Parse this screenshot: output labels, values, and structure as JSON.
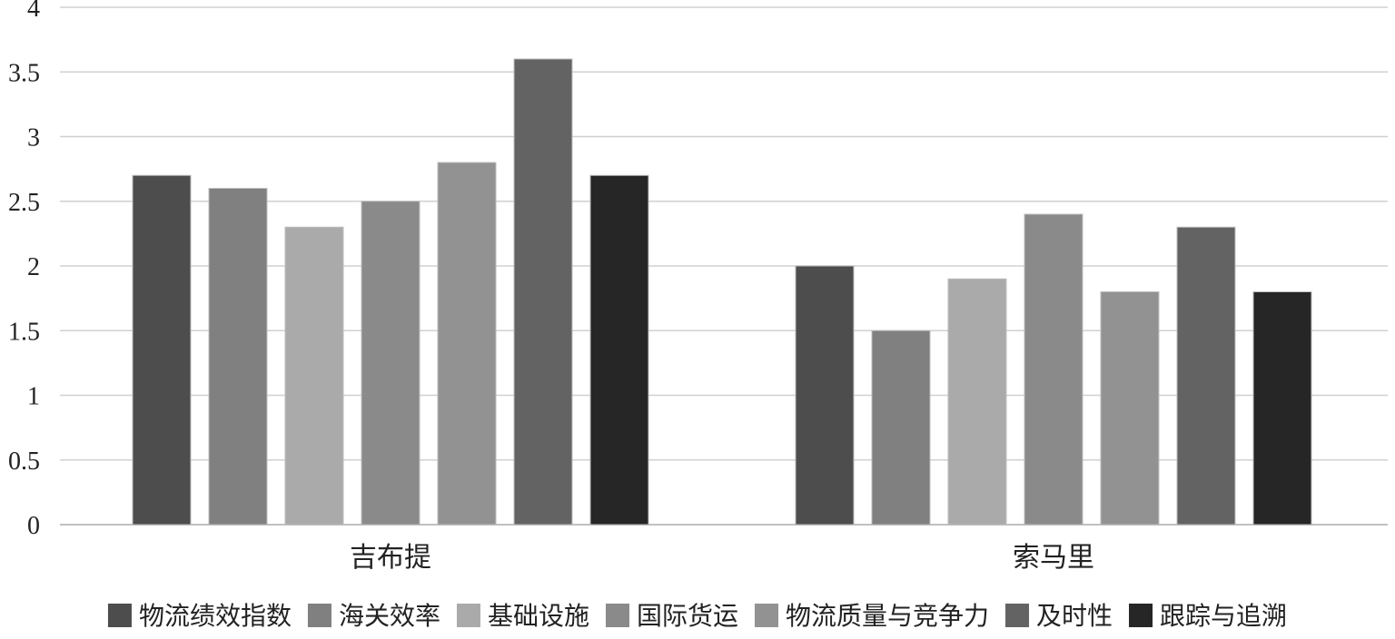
{
  "chart_data": {
    "type": "bar",
    "title": "",
    "xlabel": "",
    "ylabel": "",
    "categories": [
      "吉布提",
      "索马里"
    ],
    "ylim": [
      0,
      4
    ],
    "yticks": [
      "0",
      "0.5",
      "1",
      "1.5",
      "2",
      "2.5",
      "3",
      "3.5",
      "4"
    ],
    "grid": true,
    "legend_position": "bottom",
    "series": [
      {
        "name": "物流绩效指数",
        "values": [
          2.7,
          2.0
        ],
        "color": "#4d4d4d"
      },
      {
        "name": "海关效率",
        "values": [
          2.6,
          1.5
        ],
        "color": "#808080"
      },
      {
        "name": "基础设施",
        "values": [
          2.3,
          1.9
        ],
        "color": "#aaaaaa"
      },
      {
        "name": "国际货运",
        "values": [
          2.5,
          2.4
        ],
        "color": "#8a8a8a"
      },
      {
        "name": "物流质量与竞争力",
        "values": [
          2.8,
          1.8
        ],
        "color": "#929292"
      },
      {
        "name": "及时性",
        "values": [
          3.6,
          2.3
        ],
        "color": "#636363"
      },
      {
        "name": "跟踪与追溯",
        "values": [
          2.7,
          1.8
        ],
        "color": "#262626"
      }
    ]
  }
}
